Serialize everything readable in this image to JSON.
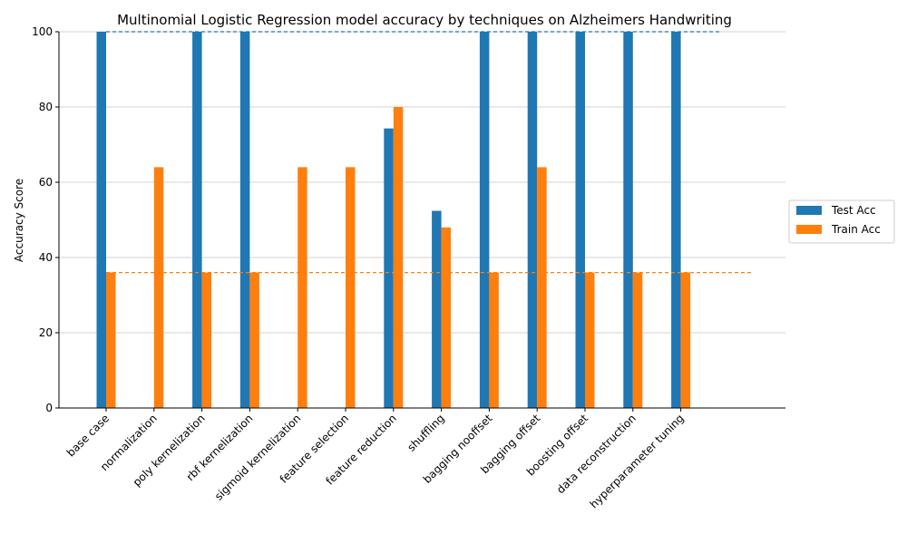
{
  "chart_data": {
    "type": "bar",
    "title": "Multinomial Logistic Regression model accuracy by techniques on Alzheimers Handwriting",
    "xlabel": "",
    "ylabel": "Accuracy Score",
    "ylim": [
      0,
      100
    ],
    "yticks": [
      0,
      20,
      40,
      60,
      80,
      100
    ],
    "grid": "horizontal",
    "legend_position": "right",
    "categories": [
      "base case",
      "normalization",
      "poly kernelization",
      "rbf kernelization",
      "sigmoid kernelization",
      "feature selection",
      "feature reduction",
      "shuffling",
      "bagging nooffset",
      "bagging offset",
      "boosting offset",
      "data reconstruction",
      "hyperparameter tuning"
    ],
    "series": [
      {
        "name": "Test Acc",
        "color": "#1f77b4",
        "values": [
          100,
          0,
          100,
          100,
          0,
          0,
          74.3,
          52.4,
          100,
          100,
          100,
          100,
          100
        ]
      },
      {
        "name": "Train Acc",
        "color": "#ff7f0e",
        "values": [
          36,
          64,
          36,
          36,
          64,
          64,
          80,
          48,
          36,
          64,
          36,
          36,
          36
        ]
      }
    ],
    "reference_lines": [
      {
        "series": "Test Acc",
        "value": 100,
        "style": "dashed",
        "color": "#1f77b4"
      },
      {
        "series": "Train Acc",
        "value": 36,
        "style": "dashed",
        "color": "#ff7f0e"
      }
    ]
  }
}
